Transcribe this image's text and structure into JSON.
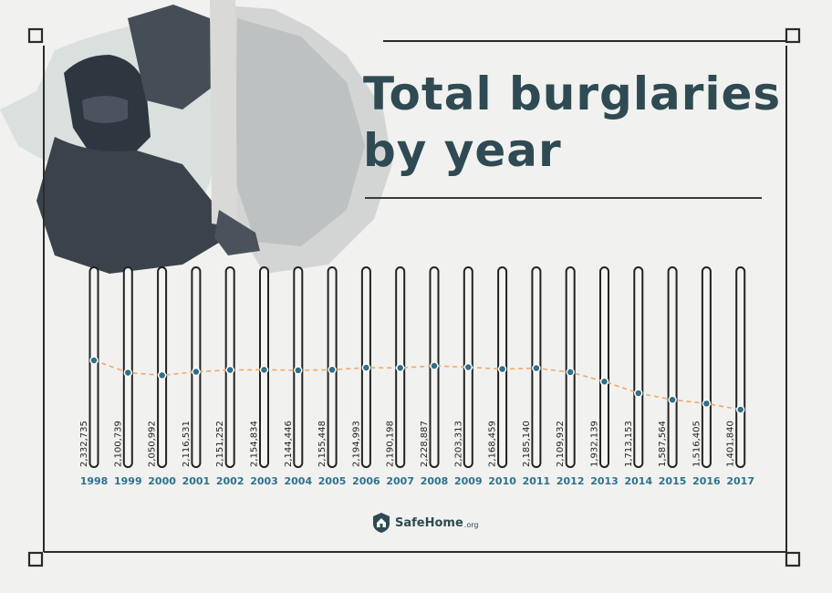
{
  "title_line1": "Total burglaries",
  "title_line2": "by year",
  "logo": {
    "name": "SafeHome",
    "domain": ".org",
    "icon": "house-shield-icon"
  },
  "colors": {
    "title": "#2f4a52",
    "year_label": "#2b7390",
    "trend_line": "#f0a868",
    "dot": "#2f6f88"
  },
  "chart_data": {
    "type": "line",
    "title": "Total burglaries by year",
    "xlabel": "",
    "ylabel": "",
    "categories": [
      "1998",
      "1999",
      "2000",
      "2001",
      "2002",
      "2003",
      "2004",
      "2005",
      "2006",
      "2007",
      "2008",
      "2009",
      "2010",
      "2011",
      "2012",
      "2013",
      "2014",
      "2015",
      "2016",
      "2017"
    ],
    "values": [
      2332735,
      2100739,
      2050992,
      2116531,
      2151252,
      2154834,
      2144446,
      2155448,
      2194993,
      2190198,
      2228887,
      2203313,
      2168459,
      2185140,
      2109932,
      1932139,
      1713153,
      1587564,
      1516405,
      1401840
    ],
    "value_labels": [
      "2,332,735",
      "2,100,739",
      "2,050,992",
      "2,116,531",
      "2,151,252",
      "2,154,834",
      "2,144,446",
      "2,155,448",
      "2,194,993",
      "2,190,198",
      "2,228,887",
      "2,203,313",
      "2,168,459",
      "2,185,140",
      "2,109,932",
      "1,932,139",
      "1,713,153",
      "1,587,564",
      "1,516,405",
      "1,401,840"
    ],
    "grid": false,
    "legend": "none"
  }
}
